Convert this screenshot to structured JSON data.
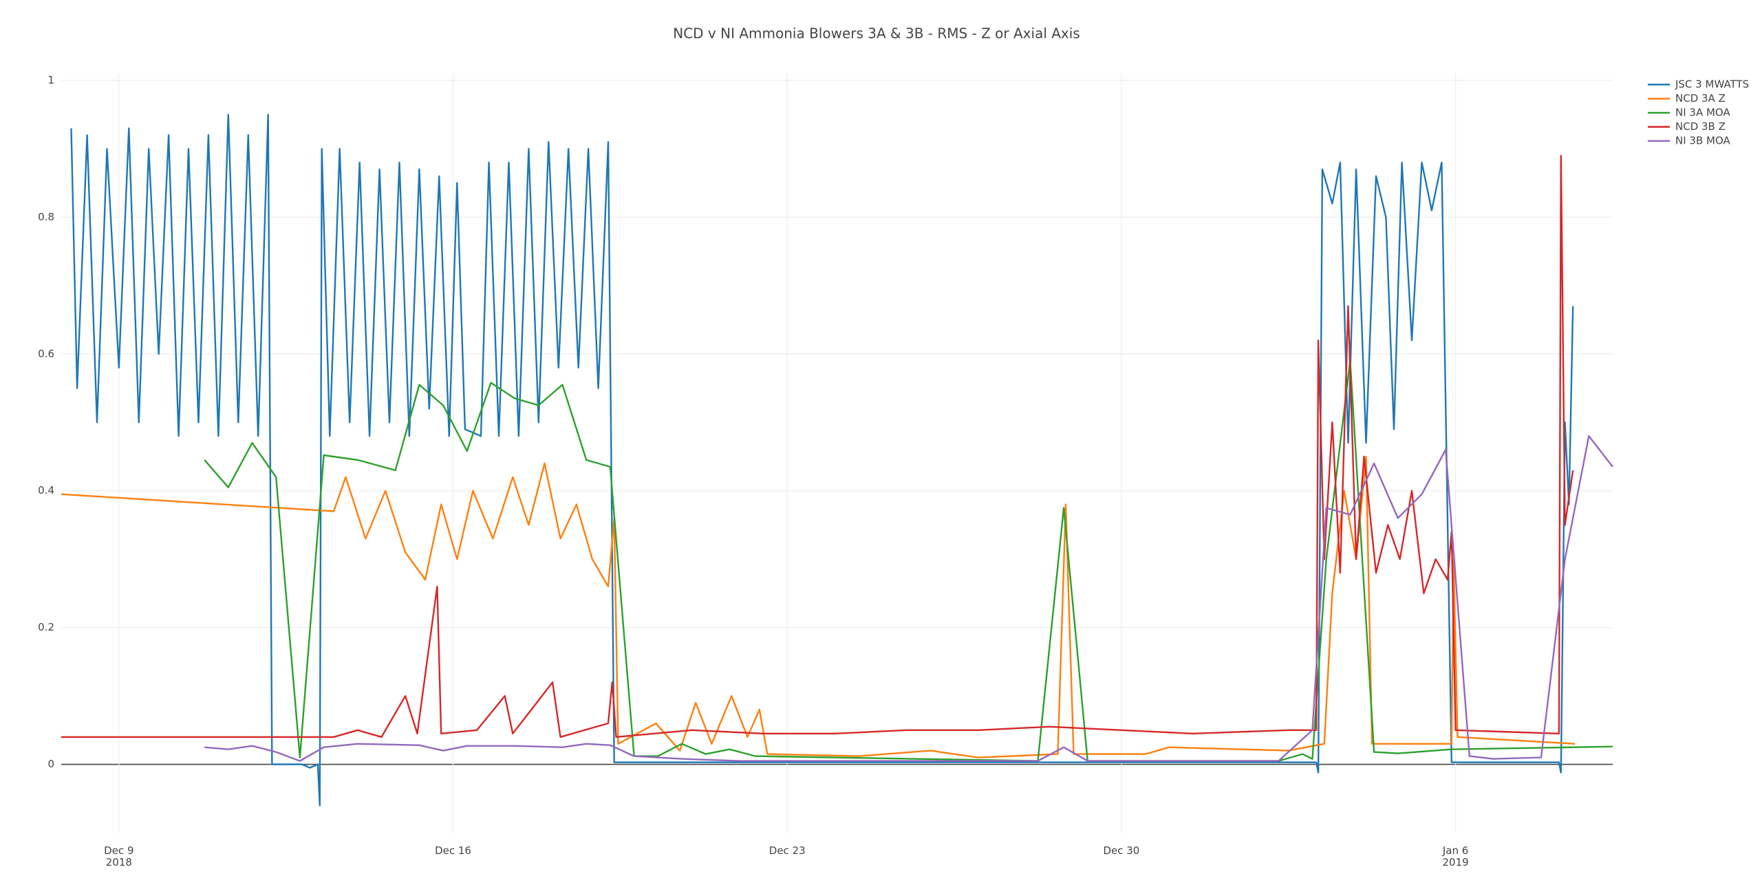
{
  "chart_data": {
    "type": "line",
    "title": "NCD v NI Ammonia Blowers 3A & 3B - RMS - Z or Axial Axis",
    "xlim": [
      "2018-12-07 19:00",
      "2019-01-09 07:00"
    ],
    "xticks": [
      {
        "value": "2018-12-09 00:00",
        "label": "Dec 9\n2018"
      },
      {
        "value": "2018-12-16 00:00",
        "label": "Dec 16"
      },
      {
        "value": "2018-12-23 00:00",
        "label": "Dec 23"
      },
      {
        "value": "2018-12-30 00:00",
        "label": "Dec 30"
      },
      {
        "value": "2019-01-06 00:00",
        "label": "Jan 6\n2019"
      }
    ],
    "ylim": [
      -0.1,
      1.01
    ],
    "yticks": [
      0,
      0.2,
      0.4,
      0.6,
      0.8,
      1
    ],
    "grid": true,
    "legend": "right",
    "series": [
      {
        "name": "JSC 3 MWATTS",
        "color": "#1f77b4",
        "x": [
          "2018-12-08 00:00",
          "2018-12-08 03:00",
          "2018-12-08 08:00",
          "2018-12-08 13:00",
          "2018-12-08 18:00",
          "2018-12-09 00:00",
          "2018-12-09 05:00",
          "2018-12-09 10:00",
          "2018-12-09 15:00",
          "2018-12-09 20:00",
          "2018-12-10 01:00",
          "2018-12-10 06:00",
          "2018-12-10 11:00",
          "2018-12-10 16:00",
          "2018-12-10 21:00",
          "2018-12-11 02:00",
          "2018-12-11 07:00",
          "2018-12-11 12:00",
          "2018-12-11 17:00",
          "2018-12-11 22:00",
          "2018-12-12 03:00",
          "2018-12-12 05:00",
          "2018-12-12 20:00",
          "2018-12-13 00:00",
          "2018-12-13 04:00",
          "2018-12-13 05:00",
          "2018-12-13 06:00",
          "2018-12-13 10:00",
          "2018-12-13 15:00",
          "2018-12-13 20:00",
          "2018-12-14 01:00",
          "2018-12-14 06:00",
          "2018-12-14 11:00",
          "2018-12-14 16:00",
          "2018-12-14 21:00",
          "2018-12-15 02:00",
          "2018-12-15 07:00",
          "2018-12-15 12:00",
          "2018-12-15 17:00",
          "2018-12-15 22:00",
          "2018-12-16 02:00",
          "2018-12-16 06:00",
          "2018-12-16 14:00",
          "2018-12-16 18:00",
          "2018-12-16 23:00",
          "2018-12-17 04:00",
          "2018-12-17 09:00",
          "2018-12-17 14:00",
          "2018-12-17 19:00",
          "2018-12-18 00:00",
          "2018-12-18 05:00",
          "2018-12-18 10:00",
          "2018-12-18 15:00",
          "2018-12-18 20:00",
          "2018-12-19 01:00",
          "2018-12-19 06:00",
          "2018-12-19 09:00",
          "2019-01-03 02:00",
          "2019-01-03 03:00",
          "2019-01-03 05:00",
          "2019-01-03 10:00",
          "2019-01-03 14:00",
          "2019-01-03 18:00",
          "2019-01-03 22:00",
          "2019-01-04 03:00",
          "2019-01-04 08:00",
          "2019-01-04 13:00",
          "2019-01-04 17:00",
          "2019-01-04 21:00",
          "2019-01-05 02:00",
          "2019-01-05 07:00",
          "2019-01-05 12:00",
          "2019-01-05 17:00",
          "2019-01-05 22:00",
          "2019-01-08 04:00",
          "2019-01-08 05:00",
          "2019-01-08 07:00",
          "2019-01-08 09:00",
          "2019-01-08 11:00"
        ],
        "values": [
          0.93,
          0.55,
          0.92,
          0.5,
          0.9,
          0.58,
          0.93,
          0.5,
          0.9,
          0.6,
          0.92,
          0.48,
          0.9,
          0.5,
          0.92,
          0.48,
          0.95,
          0.5,
          0.92,
          0.48,
          0.95,
          0,
          0,
          -0.005,
          0,
          -0.06,
          0.9,
          0.48,
          0.9,
          0.5,
          0.88,
          0.48,
          0.87,
          0.5,
          0.88,
          0.48,
          0.87,
          0.52,
          0.86,
          0.48,
          0.85,
          0.49,
          0.48,
          0.88,
          0.48,
          0.88,
          0.48,
          0.9,
          0.5,
          0.91,
          0.58,
          0.9,
          0.58,
          0.9,
          0.55,
          0.91,
          0.003,
          0.003,
          -0.012,
          0.87,
          0.82,
          0.88,
          0.47,
          0.87,
          0.47,
          0.86,
          0.8,
          0.49,
          0.88,
          0.62,
          0.88,
          0.81,
          0.88,
          0.003,
          0.003,
          -0.012,
          0.5,
          0.38,
          0.67
        ]
      },
      {
        "name": "NCD 3A Z",
        "color": "#ff7f0e",
        "x": [
          "2018-12-07 19:00",
          "2018-12-13 12:00",
          "2018-12-13 18:00",
          "2018-12-14 04:00",
          "2018-12-14 14:00",
          "2018-12-15 00:00",
          "2018-12-15 10:00",
          "2018-12-15 18:00",
          "2018-12-16 02:00",
          "2018-12-16 10:00",
          "2018-12-16 20:00",
          "2018-12-17 06:00",
          "2018-12-17 14:00",
          "2018-12-17 22:00",
          "2018-12-18 06:00",
          "2018-12-18 14:00",
          "2018-12-18 22:00",
          "2018-12-19 06:00",
          "2018-12-19 09:00",
          "2018-12-19 11:00",
          "2018-12-20 06:00",
          "2018-12-20 18:00",
          "2018-12-21 02:00",
          "2018-12-21 10:00",
          "2018-12-21 20:00",
          "2018-12-22 04:00",
          "2018-12-22 10:00",
          "2018-12-22 14:00",
          "2018-12-24 12:00",
          "2018-12-26 00:00",
          "2018-12-27 00:00",
          "2018-12-28 16:00",
          "2018-12-28 20:00",
          "2018-12-29 00:00",
          "2018-12-30 12:00",
          "2018-12-31 00:00",
          "2019-01-02 12:00",
          "2019-01-03 06:00",
          "2019-01-03 10:00",
          "2019-01-03 16:00",
          "2019-01-03 22:00",
          "2019-01-04 03:00",
          "2019-01-04 06:00",
          "2019-01-05 22:00",
          "2019-01-05 23:00",
          "2019-01-06 01:00",
          "2019-01-08 12:00"
        ],
        "values": [
          0.395,
          0.37,
          0.42,
          0.33,
          0.4,
          0.31,
          0.27,
          0.38,
          0.3,
          0.4,
          0.33,
          0.42,
          0.35,
          0.44,
          0.33,
          0.38,
          0.3,
          0.26,
          0.36,
          0.03,
          0.06,
          0.02,
          0.09,
          0.03,
          0.1,
          0.04,
          0.08,
          0.015,
          0.012,
          0.02,
          0.01,
          0.015,
          0.38,
          0.015,
          0.015,
          0.025,
          0.02,
          0.03,
          0.25,
          0.4,
          0.3,
          0.45,
          0.03,
          0.03,
          0.3,
          0.04,
          0.03
        ]
      },
      {
        "name": "NI 3A MOA",
        "color": "#2ca02c",
        "x": [
          "2018-12-10 19:00",
          "2018-12-11 07:00",
          "2018-12-11 19:00",
          "2018-12-12 07:00",
          "2018-12-12 19:00",
          "2018-12-13 07:00",
          "2018-12-14 00:00",
          "2018-12-14 19:00",
          "2018-12-15 07:00",
          "2018-12-15 19:00",
          "2018-12-16 07:00",
          "2018-12-16 19:00",
          "2018-12-17 07:00",
          "2018-12-17 19:00",
          "2018-12-18 07:00",
          "2018-12-18 19:00",
          "2018-12-19 07:00",
          "2018-12-19 19:00",
          "2018-12-20 07:00",
          "2018-12-20 19:00",
          "2018-12-21 07:00",
          "2018-12-21 19:00",
          "2018-12-22 08:00",
          "2018-12-28 06:00",
          "2018-12-28 19:00",
          "2018-12-29 07:00",
          "2019-01-02 07:00",
          "2019-01-02 19:00",
          "2019-01-03 00:00",
          "2019-01-03 07:00",
          "2019-01-03 19:00",
          "2019-01-04 07:00",
          "2019-01-04 19:00",
          "2019-01-05 22:00",
          "2019-01-09 07:00"
        ],
        "values": [
          0.445,
          0.405,
          0.47,
          0.42,
          0.01,
          0.452,
          0.445,
          0.43,
          0.555,
          0.525,
          0.458,
          0.558,
          0.535,
          0.525,
          0.555,
          0.445,
          0.435,
          0.012,
          0.012,
          0.03,
          0.015,
          0.022,
          0.012,
          0.005,
          0.375,
          0.005,
          0.005,
          0.015,
          0.008,
          0.3,
          0.59,
          0.018,
          0.016,
          0.022,
          0.026
        ]
      },
      {
        "name": "NCD 3B Z",
        "color": "#d62728",
        "x": [
          "2018-12-07 19:00",
          "2018-12-13 12:00",
          "2018-12-14 00:00",
          "2018-12-14 12:00",
          "2018-12-15 00:00",
          "2018-12-15 06:00",
          "2018-12-15 16:00",
          "2018-12-15 18:00",
          "2018-12-16 12:00",
          "2018-12-17 02:00",
          "2018-12-17 06:00",
          "2018-12-18 02:00",
          "2018-12-18 06:00",
          "2018-12-19 06:00",
          "2018-12-19 08:00",
          "2018-12-19 10:00",
          "2018-12-21 00:00",
          "2018-12-22 12:00",
          "2018-12-24 00:00",
          "2018-12-25 12:00",
          "2018-12-27 00:00",
          "2018-12-28 12:00",
          "2018-12-30 00:00",
          "2018-12-31 12:00",
          "2019-01-02 12:00",
          "2019-01-03 02:00",
          "2019-01-03 03:00",
          "2019-01-03 06:00",
          "2019-01-03 10:00",
          "2019-01-03 14:00",
          "2019-01-03 18:00",
          "2019-01-03 22:00",
          "2019-01-04 02:00",
          "2019-01-04 08:00",
          "2019-01-04 14:00",
          "2019-01-04 20:00",
          "2019-01-05 02:00",
          "2019-01-05 08:00",
          "2019-01-05 14:00",
          "2019-01-05 20:00",
          "2019-01-05 22:00",
          "2019-01-06 00:00",
          "2019-01-08 04:00",
          "2019-01-08 05:00",
          "2019-01-08 07:00",
          "2019-01-08 11:00"
        ],
        "values": [
          0.04,
          0.04,
          0.05,
          0.04,
          0.1,
          0.045,
          0.26,
          0.045,
          0.05,
          0.1,
          0.045,
          0.12,
          0.04,
          0.06,
          0.12,
          0.04,
          0.05,
          0.045,
          0.045,
          0.05,
          0.05,
          0.055,
          0.05,
          0.045,
          0.05,
          0.05,
          0.62,
          0.3,
          0.5,
          0.28,
          0.67,
          0.3,
          0.45,
          0.28,
          0.35,
          0.3,
          0.4,
          0.25,
          0.3,
          0.27,
          0.34,
          0.05,
          0.045,
          0.89,
          0.35,
          0.43
        ]
      },
      {
        "name": "NI 3B MOA",
        "color": "#9467bd",
        "x": [
          "2018-12-10 19:00",
          "2018-12-11 07:00",
          "2018-12-11 19:00",
          "2018-12-12 07:00",
          "2018-12-12 19:00",
          "2018-12-13 07:00",
          "2018-12-14 00:00",
          "2018-12-15 07:00",
          "2018-12-15 19:00",
          "2018-12-16 07:00",
          "2018-12-17 07:00",
          "2018-12-18 07:00",
          "2018-12-18 19:00",
          "2018-12-19 07:00",
          "2018-12-19 19:00",
          "2018-12-20 19:00",
          "2018-12-22 00:00",
          "2018-12-28 06:00",
          "2018-12-28 19:00",
          "2018-12-29 07:00",
          "2019-01-02 07:00",
          "2019-01-03 00:00",
          "2019-01-03 07:00",
          "2019-01-03 19:00",
          "2019-01-04 07:00",
          "2019-01-04 19:00",
          "2019-01-05 07:00",
          "2019-01-05 19:00",
          "2019-01-06 07:00",
          "2019-01-06 19:00",
          "2019-01-07 19:00",
          "2019-01-08 07:00",
          "2019-01-08 19:00",
          "2019-01-09 07:00"
        ],
        "values": [
          0.025,
          0.022,
          0.027,
          0.018,
          0.005,
          0.025,
          0.03,
          0.028,
          0.02,
          0.027,
          0.027,
          0.025,
          0.03,
          0.028,
          0.012,
          0.008,
          0.005,
          0.005,
          0.025,
          0.005,
          0.005,
          0.05,
          0.375,
          0.365,
          0.44,
          0.36,
          0.395,
          0.46,
          0.012,
          0.008,
          0.01,
          0.3,
          0.48,
          0.435
        ]
      }
    ]
  }
}
